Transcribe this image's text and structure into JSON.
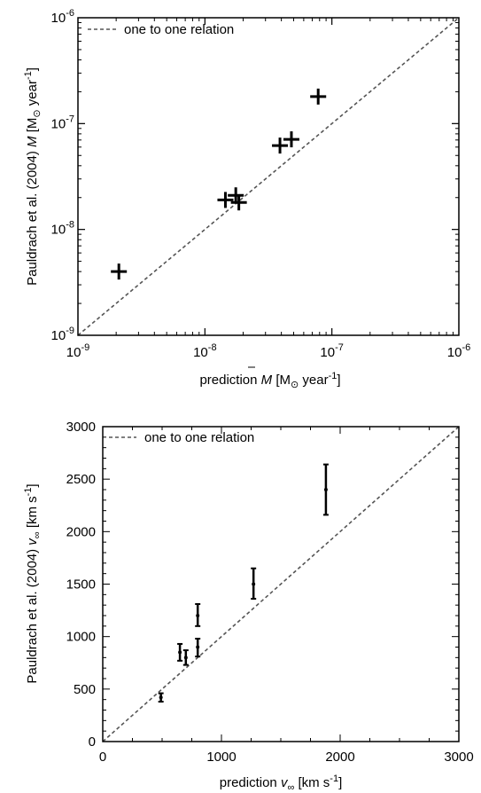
{
  "chart_data": [
    {
      "type": "scatter",
      "xscale": "log",
      "yscale": "log",
      "xlim": [
        1e-09,
        1e-06
      ],
      "ylim": [
        1e-09,
        1e-06
      ],
      "xticks": [
        {
          "value": 1e-09,
          "base": "10",
          "exp": "-9"
        },
        {
          "value": 1e-08,
          "base": "10",
          "exp": "-8"
        },
        {
          "value": 1e-07,
          "base": "10",
          "exp": "-7"
        },
        {
          "value": 1e-06,
          "base": "10",
          "exp": "-6"
        }
      ],
      "yticks": [
        {
          "value": 1e-09,
          "base": "10",
          "exp": "-9"
        },
        {
          "value": 1e-08,
          "base": "10",
          "exp": "-8"
        },
        {
          "value": 1e-07,
          "base": "10",
          "exp": "-7"
        },
        {
          "value": 1e-06,
          "base": "10",
          "exp": "-6"
        }
      ],
      "xlabel": {
        "pre": "prediction ",
        "mdot": "M",
        "unit_open": " [M",
        "sun": "⊙",
        "unit_mid": " year",
        "exp": "-1",
        "unit_close": "]"
      },
      "ylabel": {
        "pre": "Pauldrach et al. (2004) ",
        "mdot": "M",
        "unit_open": " [M",
        "sun": "⊙",
        "unit_mid": " year",
        "exp": "-1",
        "unit_close": "]"
      },
      "legend": {
        "label": "one to one relation",
        "position": "top-left"
      },
      "reference_line": "one to one relation",
      "marker": "plus",
      "points": [
        {
          "x": 2.1e-09,
          "y": 4e-09
        },
        {
          "x": 1.45e-08,
          "y": 1.9e-08
        },
        {
          "x": 1.75e-08,
          "y": 2.1e-08
        },
        {
          "x": 1.85e-08,
          "y": 1.8e-08
        },
        {
          "x": 3.9e-08,
          "y": 6.2e-08
        },
        {
          "x": 4.8e-08,
          "y": 7.1e-08
        },
        {
          "x": 7.8e-08,
          "y": 1.8e-07
        }
      ]
    },
    {
      "type": "scatter",
      "xscale": "linear",
      "yscale": "linear",
      "xlim": [
        0,
        3000
      ],
      "ylim": [
        0,
        3000
      ],
      "xticks": [
        {
          "value": 0,
          "label": "0"
        },
        {
          "value": 1000,
          "label": "1000"
        },
        {
          "value": 2000,
          "label": "2000"
        },
        {
          "value": 3000,
          "label": "3000"
        }
      ],
      "yticks": [
        {
          "value": 0,
          "label": "0"
        },
        {
          "value": 500,
          "label": "500"
        },
        {
          "value": 1000,
          "label": "1000"
        },
        {
          "value": 1500,
          "label": "1500"
        },
        {
          "value": 2000,
          "label": "2000"
        },
        {
          "value": 2500,
          "label": "2500"
        },
        {
          "value": 3000,
          "label": "3000"
        }
      ],
      "xlabel": {
        "pre": "prediction ",
        "sym": "v",
        "sub": "∞",
        "unit_open": " [km s",
        "exp": "-1",
        "unit_close": "]"
      },
      "ylabel": {
        "pre": "Pauldrach et al. (2004) ",
        "sym": "v",
        "sub": "∞",
        "unit_open": " [km s",
        "exp": "-1",
        "unit_close": "]"
      },
      "legend": {
        "label": "one to one relation",
        "position": "top-left"
      },
      "reference_line": "one to one relation",
      "marker": "errorbar",
      "points": [
        {
          "x": 490,
          "y": 420,
          "ylow": 380,
          "yhigh": 460
        },
        {
          "x": 650,
          "y": 850,
          "ylow": 770,
          "yhigh": 930
        },
        {
          "x": 700,
          "y": 800,
          "ylow": 730,
          "yhigh": 870
        },
        {
          "x": 800,
          "y": 1200,
          "ylow": 1100,
          "yhigh": 1310
        },
        {
          "x": 800,
          "y": 900,
          "ylow": 810,
          "yhigh": 980
        },
        {
          "x": 1270,
          "y": 1500,
          "ylow": 1360,
          "yhigh": 1650
        },
        {
          "x": 1880,
          "y": 2400,
          "ylow": 2160,
          "yhigh": 2640
        }
      ]
    }
  ]
}
